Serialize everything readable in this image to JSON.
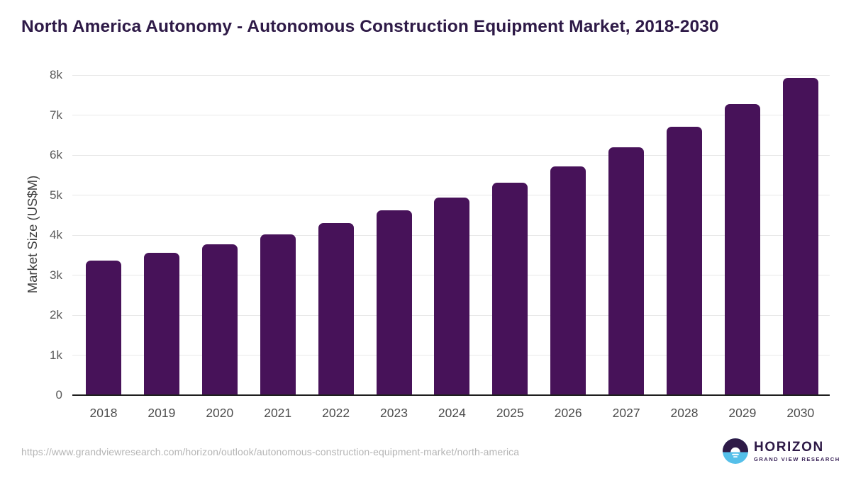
{
  "title": "North America Autonomy - Autonomous Construction Equipment Market, 2018-2030",
  "chart_data": {
    "type": "bar",
    "title": "North America Autonomy - Autonomous Construction Equipment Market, 2018-2030",
    "categories": [
      "2018",
      "2019",
      "2020",
      "2021",
      "2022",
      "2023",
      "2024",
      "2025",
      "2026",
      "2027",
      "2028",
      "2029",
      "2030"
    ],
    "values": [
      3340,
      3540,
      3760,
      4000,
      4290,
      4600,
      4930,
      5300,
      5710,
      6180,
      6700,
      7270,
      7920
    ],
    "xlabel": "",
    "ylabel": "Market Size (US$M)",
    "ylim": [
      0,
      8000
    ],
    "yticks": [
      0,
      1000,
      2000,
      3000,
      4000,
      5000,
      6000,
      7000,
      8000
    ],
    "ytick_labels": [
      "0",
      "1k",
      "2k",
      "3k",
      "4k",
      "5k",
      "6k",
      "7k",
      "8k"
    ],
    "grid": "horizontal",
    "legend": "none",
    "bar_color": "#471259"
  },
  "footer": {
    "source_url": "https://www.grandviewresearch.com/horizon/outlook/autonomous-construction-equipment-market/north-america",
    "logo": {
      "brand": "HORIZON",
      "tagline": "GRAND VIEW RESEARCH",
      "icon": "sunset-horizon-icon",
      "icon_colors": {
        "top": "#2e1a47",
        "bottom": "#55bfe9",
        "sun": "#ffffff"
      }
    }
  },
  "colors": {
    "title_text": "#2e1a47",
    "bar": "#471259",
    "grid": "#e8e8e8",
    "baseline": "#1f1f1f",
    "tick_text": "#595959",
    "axis_title_text": "#3f3f3f",
    "url_text": "#b5b5b5"
  }
}
